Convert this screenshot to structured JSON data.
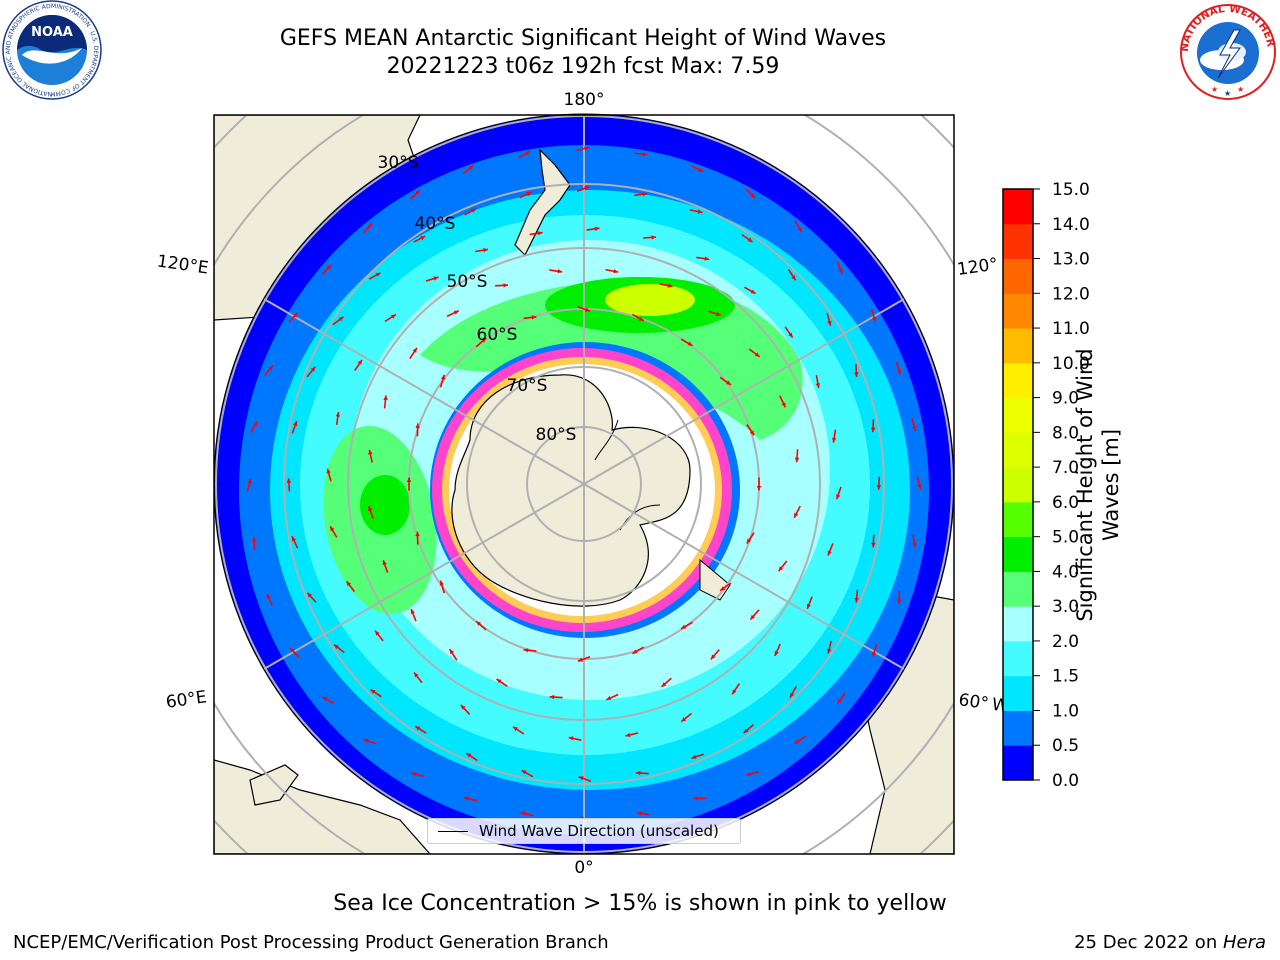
{
  "header": {
    "title_line1": "GEFS MEAN Antarctic Significant Height of Wind Waves",
    "title_line2": "20221223 t06z 192h fcst   Max: 7.59"
  },
  "logos": {
    "noaa_text": "NOAA",
    "noaa_ring_text": "NATIONAL OCEANIC AND ATMOSPHERIC ADMINISTRATION · U.S. DEPARTMENT OF COMMERCE",
    "nws_ring_text": "NATIONAL WEATHER SERVICE"
  },
  "map": {
    "projection": "south-polar-stereographic",
    "longitude_labels": {
      "top": "180°",
      "bottom": "0°",
      "upper_left": "120°E",
      "lower_left": "60°E",
      "upper_right": "120°",
      "lower_right": "60° W"
    },
    "latitude_labels": [
      "30°S",
      "40°S",
      "50°S",
      "60°S",
      "70°S",
      "80°S"
    ],
    "legend_text": "Wind Wave Direction (unscaled)",
    "colors": {
      "land": "#efedda",
      "graticule": "#b0b0b0",
      "arrow": "#ff0000",
      "ice_pink": "#ff44cc"
    }
  },
  "colorbar": {
    "label": "Significant Height of Wind Waves [m]",
    "label_line1": "Significant Height of Wind",
    "label_line2": "Waves [m]",
    "ticks": [
      "0.0",
      "0.5",
      "1.0",
      "1.5",
      "2.0",
      "3.0",
      "4.0",
      "5.0",
      "6.0",
      "7.0",
      "8.0",
      "9.0",
      "10.0",
      "11.0",
      "12.0",
      "13.0",
      "14.0",
      "15.0"
    ],
    "colors": [
      "#0000ff",
      "#0077ff",
      "#00e6ff",
      "#44fbff",
      "#a8ffff",
      "#55ff77",
      "#00ee00",
      "#55ff00",
      "#ccff00",
      "#ddff00",
      "#eeff00",
      "#ffee00",
      "#ffbb00",
      "#ff8800",
      "#ff6600",
      "#ff3300",
      "#ff0000"
    ]
  },
  "footer": {
    "note": "Sea Ice Concentration > 15% is shown in pink to yellow",
    "left": "NCEP/EMC/Verification Post Processing Product Generation Branch",
    "right_date": "25 Dec 2022 on ",
    "right_host": "Hera"
  }
}
